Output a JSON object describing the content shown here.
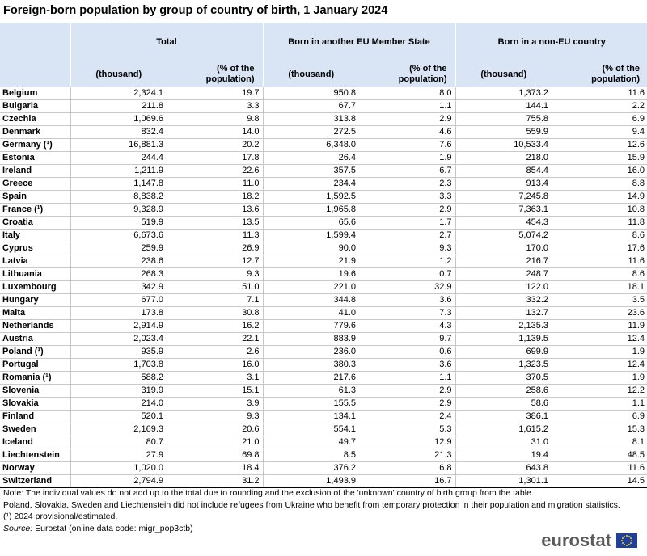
{
  "title": "Foreign-born population by group of country of birth, 1 January 2024",
  "header": {
    "groups": [
      "Total",
      "Born in another EU Member State",
      "Born in a non-EU country"
    ],
    "thousand": "(thousand)",
    "pct_line1": "(% of the",
    "pct_line2": "population)"
  },
  "rows": [
    {
      "country": "Belgium",
      "tot_th": "2,324.1",
      "tot_pct": "19.7",
      "eu_th": "950.8",
      "eu_pct": "8.0",
      "neu_th": "1,373.2",
      "neu_pct": "11.6"
    },
    {
      "country": "Bulgaria",
      "tot_th": "211.8",
      "tot_pct": "3.3",
      "eu_th": "67.7",
      "eu_pct": "1.1",
      "neu_th": "144.1",
      "neu_pct": "2.2"
    },
    {
      "country": "Czechia",
      "tot_th": "1,069.6",
      "tot_pct": "9.8",
      "eu_th": "313.8",
      "eu_pct": "2.9",
      "neu_th": "755.8",
      "neu_pct": "6.9"
    },
    {
      "country": "Denmark",
      "tot_th": "832.4",
      "tot_pct": "14.0",
      "eu_th": "272.5",
      "eu_pct": "4.6",
      "neu_th": "559.9",
      "neu_pct": "9.4"
    },
    {
      "country": "Germany (¹)",
      "tot_th": "16,881.3",
      "tot_pct": "20.2",
      "eu_th": "6,348.0",
      "eu_pct": "7.6",
      "neu_th": "10,533.4",
      "neu_pct": "12.6"
    },
    {
      "country": "Estonia",
      "tot_th": "244.4",
      "tot_pct": "17.8",
      "eu_th": "26.4",
      "eu_pct": "1.9",
      "neu_th": "218.0",
      "neu_pct": "15.9"
    },
    {
      "country": "Ireland",
      "tot_th": "1,211.9",
      "tot_pct": "22.6",
      "eu_th": "357.5",
      "eu_pct": "6.7",
      "neu_th": "854.4",
      "neu_pct": "16.0"
    },
    {
      "country": "Greece",
      "tot_th": "1,147.8",
      "tot_pct": "11.0",
      "eu_th": "234.4",
      "eu_pct": "2.3",
      "neu_th": "913.4",
      "neu_pct": "8.8"
    },
    {
      "country": "Spain",
      "tot_th": "8,838.2",
      "tot_pct": "18.2",
      "eu_th": "1,592.5",
      "eu_pct": "3.3",
      "neu_th": "7,245.8",
      "neu_pct": "14.9"
    },
    {
      "country": "France (¹)",
      "tot_th": "9,328.9",
      "tot_pct": "13.6",
      "eu_th": "1,965.8",
      "eu_pct": "2.9",
      "neu_th": "7,363.1",
      "neu_pct": "10.8"
    },
    {
      "country": "Croatia",
      "tot_th": "519.9",
      "tot_pct": "13.5",
      "eu_th": "65.6",
      "eu_pct": "1.7",
      "neu_th": "454.3",
      "neu_pct": "11.8"
    },
    {
      "country": "Italy",
      "tot_th": "6,673.6",
      "tot_pct": "11.3",
      "eu_th": "1,599.4",
      "eu_pct": "2.7",
      "neu_th": "5,074.2",
      "neu_pct": "8.6"
    },
    {
      "country": "Cyprus",
      "tot_th": "259.9",
      "tot_pct": "26.9",
      "eu_th": "90.0",
      "eu_pct": "9.3",
      "neu_th": "170.0",
      "neu_pct": "17.6"
    },
    {
      "country": "Latvia",
      "tot_th": "238.6",
      "tot_pct": "12.7",
      "eu_th": "21.9",
      "eu_pct": "1.2",
      "neu_th": "216.7",
      "neu_pct": "11.6"
    },
    {
      "country": "Lithuania",
      "tot_th": "268.3",
      "tot_pct": "9.3",
      "eu_th": "19.6",
      "eu_pct": "0.7",
      "neu_th": "248.7",
      "neu_pct": "8.6"
    },
    {
      "country": "Luxembourg",
      "tot_th": "342.9",
      "tot_pct": "51.0",
      "eu_th": "221.0",
      "eu_pct": "32.9",
      "neu_th": "122.0",
      "neu_pct": "18.1"
    },
    {
      "country": "Hungary",
      "tot_th": "677.0",
      "tot_pct": "7.1",
      "eu_th": "344.8",
      "eu_pct": "3.6",
      "neu_th": "332.2",
      "neu_pct": "3.5"
    },
    {
      "country": "Malta",
      "tot_th": "173.8",
      "tot_pct": "30.8",
      "eu_th": "41.0",
      "eu_pct": "7.3",
      "neu_th": "132.7",
      "neu_pct": "23.6"
    },
    {
      "country": "Netherlands",
      "tot_th": "2,914.9",
      "tot_pct": "16.2",
      "eu_th": "779.6",
      "eu_pct": "4.3",
      "neu_th": "2,135.3",
      "neu_pct": "11.9"
    },
    {
      "country": "Austria",
      "tot_th": "2,023.4",
      "tot_pct": "22.1",
      "eu_th": "883.9",
      "eu_pct": "9.7",
      "neu_th": "1,139.5",
      "neu_pct": "12.4"
    },
    {
      "country": "Poland (¹)",
      "tot_th": "935.9",
      "tot_pct": "2.6",
      "eu_th": "236.0",
      "eu_pct": "0.6",
      "neu_th": "699.9",
      "neu_pct": "1.9"
    },
    {
      "country": "Portugal",
      "tot_th": "1,703.8",
      "tot_pct": "16.0",
      "eu_th": "380.3",
      "eu_pct": "3.6",
      "neu_th": "1,323.5",
      "neu_pct": "12.4"
    },
    {
      "country": "Romania (¹)",
      "tot_th": "588.2",
      "tot_pct": "3.1",
      "eu_th": "217.6",
      "eu_pct": "1.1",
      "neu_th": "370.5",
      "neu_pct": "1.9"
    },
    {
      "country": "Slovenia",
      "tot_th": "319.9",
      "tot_pct": "15.1",
      "eu_th": "61.3",
      "eu_pct": "2.9",
      "neu_th": "258.6",
      "neu_pct": "12.2"
    },
    {
      "country": "Slovakia",
      "tot_th": "214.0",
      "tot_pct": "3.9",
      "eu_th": "155.5",
      "eu_pct": "2.9",
      "neu_th": "58.6",
      "neu_pct": "1.1"
    },
    {
      "country": "Finland",
      "tot_th": "520.1",
      "tot_pct": "9.3",
      "eu_th": "134.1",
      "eu_pct": "2.4",
      "neu_th": "386.1",
      "neu_pct": "6.9"
    },
    {
      "country": "Sweden",
      "tot_th": "2,169.3",
      "tot_pct": "20.6",
      "eu_th": "554.1",
      "eu_pct": "5.3",
      "neu_th": "1,615.2",
      "neu_pct": "15.3"
    },
    {
      "country": "Iceland",
      "tot_th": "80.7",
      "tot_pct": "21.0",
      "eu_th": "49.7",
      "eu_pct": "12.9",
      "neu_th": "31.0",
      "neu_pct": "8.1"
    },
    {
      "country": "Liechtenstein",
      "tot_th": "27.9",
      "tot_pct": "69.8",
      "eu_th": "8.5",
      "eu_pct": "21.3",
      "neu_th": "19.4",
      "neu_pct": "48.5"
    },
    {
      "country": "Norway",
      "tot_th": "1,020.0",
      "tot_pct": "18.4",
      "eu_th": "376.2",
      "eu_pct": "6.8",
      "neu_th": "643.8",
      "neu_pct": "11.6"
    },
    {
      "country": "Switzerland",
      "tot_th": "2,794.9",
      "tot_pct": "31.2",
      "eu_th": "1,493.9",
      "eu_pct": "16.7",
      "neu_th": "1,301.1",
      "neu_pct": "14.5"
    }
  ],
  "notes": {
    "note1": "Note: The individual values do not add up to the total due to rounding and the exclusion of the 'unknown' country of birth group from the table.",
    "note2": "Poland, Slovakia, Sweden and Liechtenstein did not include refugees from Ukraine who benefit from temporary protection in their population and migration statistics.",
    "footnote": "(¹) 2024 provisional/estimated.",
    "source_label": "Source:",
    "source_text": " Eurostat (online data code: migr_pop3ctb)"
  },
  "logo": {
    "text": "eurostat",
    "icon": "eu-flag-icon"
  },
  "colors": {
    "header_bg": "#d9e4f4",
    "flag_blue": "#1f3f9a",
    "flag_star": "#f5d20a",
    "logo_text": "#5b5b5b"
  }
}
